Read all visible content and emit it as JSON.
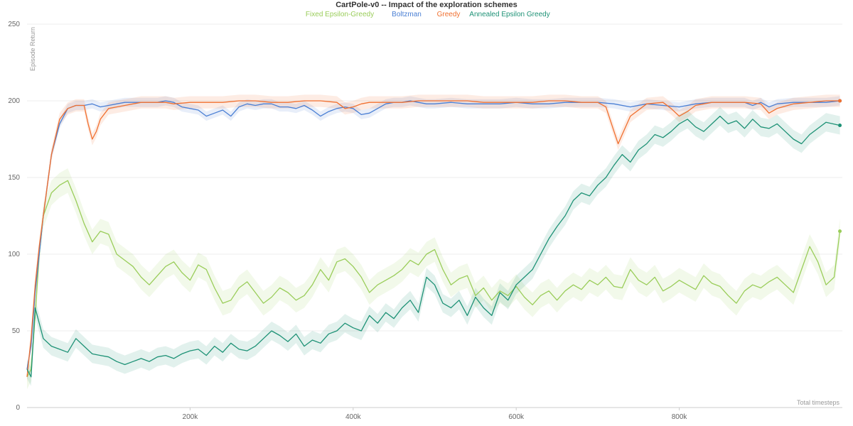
{
  "chart_data": {
    "type": "line",
    "title": "CartPole-v0 -- Impact of the exploration schemes",
    "xlabel": "Total timesteps",
    "ylabel": "Episode Return",
    "xlim": [
      0,
      1000000
    ],
    "ylim": [
      0,
      250
    ],
    "yticks": [
      0,
      50,
      100,
      150,
      200,
      250
    ],
    "xticks": [
      200000,
      400000,
      600000,
      800000
    ],
    "xtick_labels": [
      "200k",
      "400k",
      "600k",
      "800k"
    ],
    "grid": true,
    "legend_position": "top",
    "series": [
      {
        "name": "Fixed Epsilon-Greedy",
        "color": "#9acd5a",
        "x": [
          0,
          5000,
          10000,
          15000,
          20000,
          30000,
          40000,
          50000,
          60000,
          70000,
          80000,
          90000,
          100000,
          110000,
          120000,
          130000,
          140000,
          150000,
          160000,
          170000,
          180000,
          190000,
          200000,
          210000,
          220000,
          230000,
          240000,
          250000,
          260000,
          270000,
          280000,
          290000,
          300000,
          310000,
          320000,
          330000,
          340000,
          350000,
          360000,
          370000,
          380000,
          390000,
          400000,
          410000,
          420000,
          430000,
          440000,
          450000,
          460000,
          470000,
          480000,
          490000,
          500000,
          510000,
          520000,
          530000,
          540000,
          550000,
          560000,
          570000,
          580000,
          590000,
          600000,
          610000,
          620000,
          630000,
          640000,
          650000,
          660000,
          670000,
          680000,
          690000,
          700000,
          710000,
          720000,
          730000,
          740000,
          750000,
          760000,
          770000,
          780000,
          790000,
          800000,
          810000,
          820000,
          830000,
          840000,
          850000,
          860000,
          870000,
          880000,
          890000,
          900000,
          910000,
          920000,
          930000,
          940000,
          950000,
          960000,
          970000,
          980000,
          990000,
          997000
        ],
        "values": [
          20,
          25,
          60,
          100,
          125,
          140,
          145,
          148,
          135,
          120,
          108,
          115,
          113,
          100,
          96,
          92,
          85,
          80,
          86,
          92,
          95,
          88,
          83,
          93,
          90,
          78,
          68,
          70,
          78,
          82,
          75,
          68,
          72,
          78,
          75,
          70,
          73,
          80,
          90,
          83,
          95,
          97,
          92,
          85,
          75,
          80,
          83,
          86,
          90,
          96,
          93,
          100,
          103,
          90,
          80,
          84,
          86,
          73,
          78,
          70,
          76,
          73,
          79,
          72,
          67,
          73,
          76,
          70,
          76,
          80,
          77,
          83,
          80,
          85,
          79,
          78,
          90,
          83,
          80,
          85,
          76,
          79,
          83,
          80,
          77,
          86,
          81,
          79,
          73,
          68,
          76,
          80,
          78,
          82,
          85,
          80,
          75,
          90,
          105,
          95,
          80,
          85,
          115
        ],
        "band": 8
      },
      {
        "name": "Boltzman",
        "color": "#4a7fd4",
        "x": [
          0,
          5000,
          10000,
          15000,
          20000,
          30000,
          40000,
          50000,
          60000,
          70000,
          80000,
          90000,
          100000,
          110000,
          120000,
          130000,
          140000,
          150000,
          160000,
          170000,
          180000,
          190000,
          200000,
          210000,
          220000,
          230000,
          240000,
          250000,
          260000,
          270000,
          280000,
          290000,
          300000,
          310000,
          320000,
          330000,
          340000,
          350000,
          360000,
          370000,
          380000,
          390000,
          400000,
          410000,
          420000,
          430000,
          440000,
          450000,
          460000,
          470000,
          480000,
          490000,
          500000,
          520000,
          540000,
          560000,
          580000,
          600000,
          620000,
          640000,
          660000,
          680000,
          700000,
          720000,
          740000,
          760000,
          780000,
          800000,
          820000,
          840000,
          860000,
          880000,
          890000,
          900000,
          910000,
          920000,
          940000,
          960000,
          980000,
          997000
        ],
        "values": [
          25,
          40,
          75,
          100,
          125,
          165,
          185,
          195,
          197,
          197,
          198,
          196,
          197,
          198,
          199,
          199,
          199,
          199,
          199,
          200,
          199,
          196,
          195,
          194,
          190,
          192,
          194,
          190,
          196,
          198,
          197,
          198,
          198,
          196,
          196,
          195,
          197,
          194,
          190,
          193,
          195,
          196,
          195,
          191,
          192,
          195,
          198,
          199,
          199,
          200,
          199,
          198,
          198,
          199,
          198,
          198,
          198,
          199,
          198,
          198,
          199,
          199,
          199,
          198,
          196,
          198,
          197,
          196,
          198,
          199,
          199,
          199,
          197,
          199,
          196,
          198,
          199,
          199,
          199,
          200
        ],
        "band": 3
      },
      {
        "name": "Greedy",
        "color": "#f07030",
        "x": [
          0,
          5000,
          10000,
          15000,
          20000,
          30000,
          40000,
          50000,
          60000,
          70000,
          75000,
          80000,
          85000,
          90000,
          100000,
          110000,
          120000,
          130000,
          140000,
          150000,
          160000,
          170000,
          180000,
          200000,
          220000,
          240000,
          260000,
          280000,
          300000,
          320000,
          340000,
          360000,
          380000,
          390000,
          400000,
          410000,
          420000,
          440000,
          460000,
          480000,
          500000,
          520000,
          540000,
          560000,
          580000,
          600000,
          620000,
          640000,
          660000,
          680000,
          700000,
          710000,
          720000,
          725000,
          730000,
          740000,
          760000,
          780000,
          790000,
          800000,
          810000,
          820000,
          840000,
          860000,
          880000,
          900000,
          910000,
          920000,
          940000,
          960000,
          980000,
          997000
        ],
        "values": [
          20,
          45,
          80,
          105,
          125,
          165,
          188,
          195,
          197,
          197,
          185,
          175,
          180,
          188,
          195,
          196,
          197,
          198,
          199,
          199,
          199,
          199,
          198,
          199,
          199,
          199,
          200,
          200,
          199,
          199,
          200,
          200,
          199,
          195,
          196,
          198,
          199,
          199,
          199,
          200,
          200,
          200,
          200,
          199,
          199,
          199,
          199,
          200,
          200,
          199,
          199,
          196,
          180,
          172,
          178,
          190,
          198,
          199,
          195,
          190,
          193,
          197,
          199,
          199,
          199,
          198,
          192,
          195,
          198,
          199,
          200,
          200
        ],
        "band": 4
      },
      {
        "name": "Annealed Epsilon Greedy",
        "color": "#1e9276",
        "x": [
          0,
          5000,
          10000,
          15000,
          20000,
          30000,
          40000,
          50000,
          60000,
          70000,
          80000,
          90000,
          100000,
          110000,
          120000,
          130000,
          140000,
          150000,
          160000,
          170000,
          180000,
          190000,
          200000,
          210000,
          220000,
          230000,
          240000,
          250000,
          260000,
          270000,
          280000,
          290000,
          300000,
          310000,
          320000,
          330000,
          340000,
          350000,
          360000,
          370000,
          380000,
          390000,
          400000,
          410000,
          420000,
          430000,
          440000,
          450000,
          460000,
          470000,
          480000,
          490000,
          500000,
          510000,
          520000,
          530000,
          540000,
          550000,
          560000,
          570000,
          580000,
          590000,
          600000,
          610000,
          620000,
          630000,
          640000,
          650000,
          660000,
          670000,
          680000,
          690000,
          700000,
          710000,
          720000,
          730000,
          740000,
          750000,
          760000,
          770000,
          780000,
          790000,
          800000,
          810000,
          820000,
          830000,
          840000,
          850000,
          860000,
          870000,
          880000,
          890000,
          900000,
          910000,
          920000,
          930000,
          940000,
          950000,
          960000,
          970000,
          980000,
          997000
        ],
        "values": [
          25,
          20,
          65,
          55,
          45,
          40,
          38,
          36,
          45,
          40,
          35,
          34,
          33,
          30,
          28,
          30,
          32,
          30,
          33,
          34,
          32,
          35,
          37,
          38,
          34,
          40,
          36,
          42,
          38,
          37,
          40,
          45,
          50,
          47,
          43,
          48,
          40,
          44,
          42,
          48,
          50,
          55,
          52,
          50,
          60,
          55,
          62,
          58,
          65,
          70,
          62,
          85,
          80,
          68,
          65,
          70,
          60,
          72,
          65,
          60,
          75,
          70,
          80,
          85,
          90,
          100,
          110,
          118,
          125,
          135,
          140,
          138,
          145,
          150,
          158,
          165,
          160,
          168,
          172,
          178,
          176,
          180,
          185,
          188,
          183,
          180,
          185,
          190,
          185,
          187,
          182,
          188,
          183,
          182,
          185,
          180,
          175,
          172,
          178,
          182,
          186,
          184
        ],
        "band": 6
      }
    ]
  }
}
